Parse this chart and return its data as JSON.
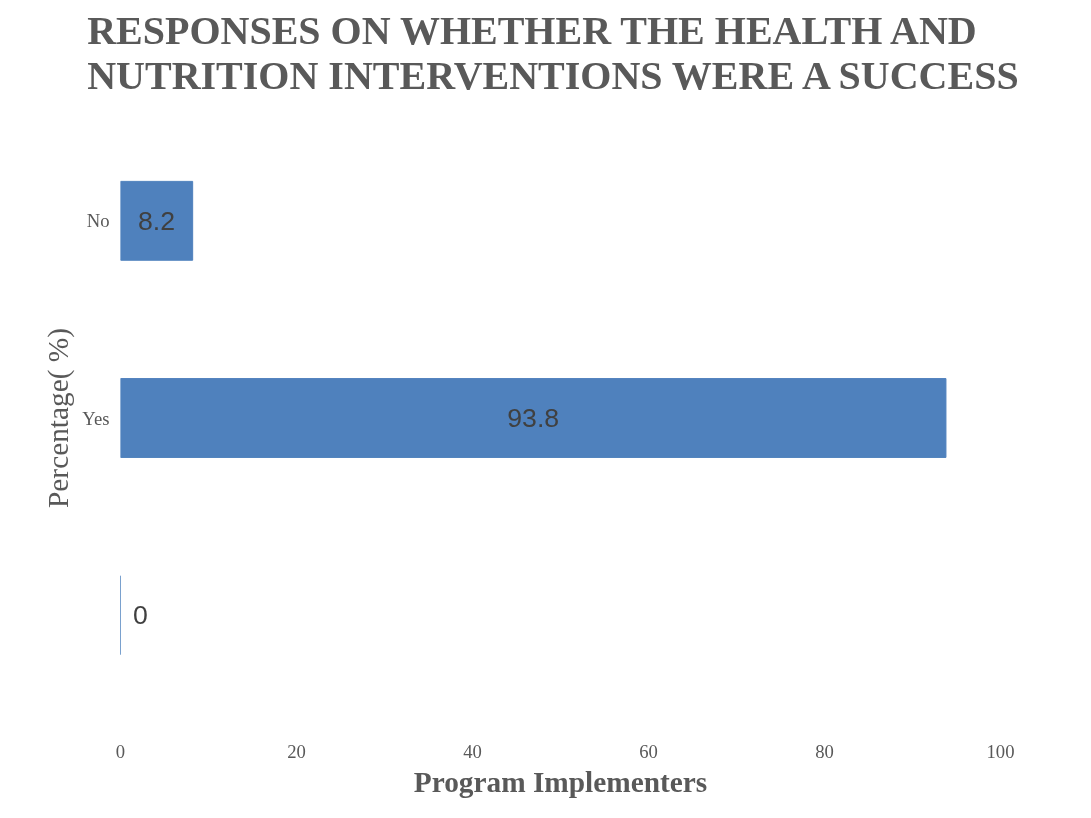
{
  "chart_data": {
    "type": "bar",
    "orientation": "horizontal",
    "title": "RESPONSES ON WHETHER THE HEALTH AND\nNUTRITION INTERVENTIONS  WERE A SUCCESS",
    "xlabel": "Program Implementers",
    "ylabel": "Percentage( %)",
    "categories": [
      "No",
      "Yes",
      null
    ],
    "values": [
      8.2,
      93.8,
      0
    ],
    "color": "#4f81bd",
    "xlim": [
      0,
      100
    ],
    "xticks": [
      0,
      20,
      40,
      60,
      80,
      100
    ],
    "grid": false,
    "data_labels": true
  }
}
